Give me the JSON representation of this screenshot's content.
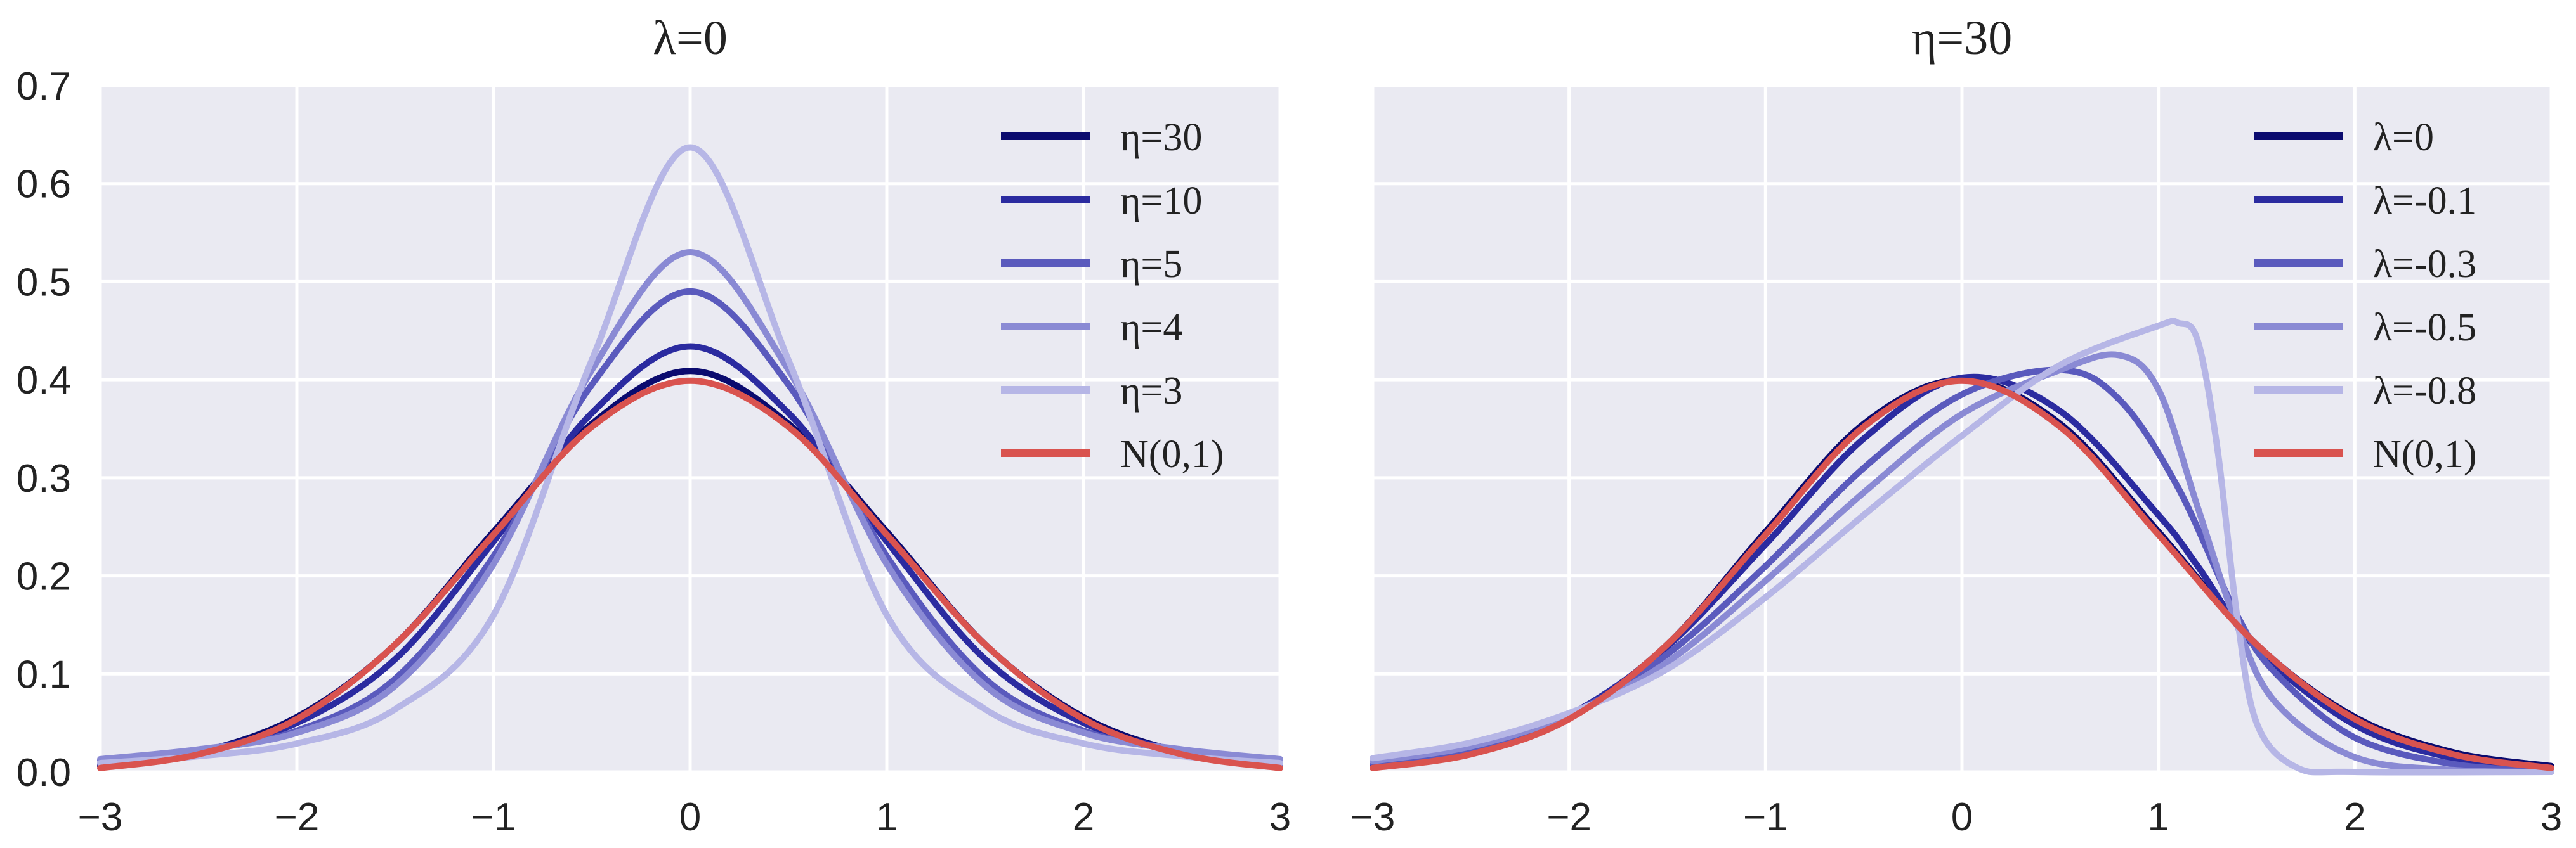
{
  "chart_data": [
    {
      "type": "line",
      "title": "λ=0",
      "xlabel": "",
      "ylabel": "",
      "xlim": [
        -3,
        3
      ],
      "ylim": [
        0,
        0.7
      ],
      "xticks": [
        "−3",
        "−2",
        "−1",
        "0",
        "1",
        "2",
        "3"
      ],
      "yticks": [
        "0.0",
        "0.1",
        "0.2",
        "0.3",
        "0.4",
        "0.5",
        "0.6",
        "0.7"
      ],
      "grid": true,
      "legend": "top-right",
      "series": [
        {
          "name": "η=30",
          "color": "#0b0b6f",
          "x": [
            -3,
            -2.5,
            -2,
            -1.5,
            -1,
            -0.5,
            0,
            0.5,
            1,
            1.5,
            2,
            2.5,
            3
          ],
          "y": [
            0.006,
            0.02,
            0.056,
            0.13,
            0.245,
            0.355,
            0.409,
            0.355,
            0.245,
            0.13,
            0.056,
            0.02,
            0.006
          ]
        },
        {
          "name": "η=10",
          "color": "#2b2ba0",
          "x": [
            -3,
            -2.5,
            -2,
            -1.5,
            -1,
            -0.5,
            0,
            0.5,
            1,
            1.5,
            2,
            2.5,
            3
          ],
          "y": [
            0.008,
            0.021,
            0.05,
            0.115,
            0.235,
            0.366,
            0.434,
            0.366,
            0.235,
            0.115,
            0.05,
            0.021,
            0.008
          ]
        },
        {
          "name": "η=5",
          "color": "#5a5abd",
          "x": [
            -3,
            -2.5,
            -2,
            -1.5,
            -1,
            -0.5,
            0,
            0.5,
            1,
            1.5,
            2,
            2.5,
            3
          ],
          "y": [
            0.012,
            0.022,
            0.042,
            0.095,
            0.22,
            0.395,
            0.49,
            0.395,
            0.22,
            0.095,
            0.042,
            0.022,
            0.012
          ]
        },
        {
          "name": "η=4",
          "color": "#8a8ad4",
          "x": [
            -3,
            -2.5,
            -2,
            -1.5,
            -1,
            -0.5,
            0,
            0.5,
            1,
            1.5,
            2,
            2.5,
            3
          ],
          "y": [
            0.013,
            0.023,
            0.04,
            0.088,
            0.212,
            0.41,
            0.53,
            0.41,
            0.212,
            0.088,
            0.04,
            0.023,
            0.013
          ]
        },
        {
          "name": "η=3",
          "color": "#b6b6e6",
          "x": [
            -3,
            -2.5,
            -2,
            -1.5,
            -1,
            -0.5,
            0,
            0.5,
            1,
            1.5,
            2,
            2.5,
            3
          ],
          "y": [
            0.009,
            0.016,
            0.029,
            0.064,
            0.16,
            0.42,
            0.637,
            0.42,
            0.16,
            0.064,
            0.029,
            0.016,
            0.009
          ]
        },
        {
          "name": "N(0,1)",
          "color": "#d9534f",
          "x": [
            -3,
            -2.5,
            -2,
            -1.5,
            -1,
            -0.5,
            0,
            0.5,
            1,
            1.5,
            2,
            2.5,
            3
          ],
          "y": [
            0.004,
            0.018,
            0.054,
            0.13,
            0.242,
            0.352,
            0.399,
            0.352,
            0.242,
            0.13,
            0.054,
            0.018,
            0.004
          ]
        }
      ]
    },
    {
      "type": "line",
      "title": "η=30",
      "xlabel": "",
      "ylabel": "",
      "xlim": [
        -3,
        3
      ],
      "ylim": [
        0,
        0.7
      ],
      "xticks": [
        "−3",
        "−2",
        "−1",
        "0",
        "1",
        "2",
        "3"
      ],
      "yticks": [],
      "grid": true,
      "legend": "top-right",
      "series": [
        {
          "name": "λ=0",
          "color": "#0b0b6f",
          "x": [
            -3,
            -2.5,
            -2,
            -1.5,
            -1,
            -0.5,
            0,
            0.5,
            1,
            1.5,
            2,
            2.5,
            3
          ],
          "y": [
            0.006,
            0.02,
            0.056,
            0.13,
            0.245,
            0.355,
            0.4,
            0.355,
            0.245,
            0.13,
            0.056,
            0.02,
            0.006
          ]
        },
        {
          "name": "λ=-0.1",
          "color": "#2b2ba0",
          "x": [
            -3,
            -2.5,
            -2,
            -1.5,
            -1,
            -0.5,
            0,
            0.5,
            1,
            1.2,
            1.5,
            2,
            2.5,
            3
          ],
          "y": [
            0.007,
            0.022,
            0.058,
            0.128,
            0.232,
            0.34,
            0.402,
            0.368,
            0.262,
            0.21,
            0.126,
            0.048,
            0.014,
            0.003
          ]
        },
        {
          "name": "λ=-0.3",
          "color": "#5a5abd",
          "x": [
            -3,
            -2.5,
            -2,
            -1.5,
            -1,
            -0.5,
            0,
            0.5,
            0.8,
            1.1,
            1.4,
            1.6,
            2,
            2.5,
            3
          ],
          "y": [
            0.009,
            0.024,
            0.058,
            0.12,
            0.21,
            0.31,
            0.385,
            0.41,
            0.38,
            0.29,
            0.16,
            0.1,
            0.035,
            0.008,
            0.001
          ]
        },
        {
          "name": "λ=-0.5",
          "color": "#8a8ad4",
          "x": [
            -3,
            -2.5,
            -2,
            -1.5,
            -1,
            -0.5,
            0,
            0.5,
            0.8,
            1.0,
            1.2,
            1.4,
            1.6,
            2,
            2.5,
            3
          ],
          "y": [
            0.011,
            0.026,
            0.058,
            0.112,
            0.195,
            0.285,
            0.365,
            0.41,
            0.425,
            0.39,
            0.27,
            0.15,
            0.07,
            0.015,
            0.002,
            0.0
          ]
        },
        {
          "name": "λ=-0.8",
          "color": "#b6b6e6",
          "x": [
            -3,
            -2.5,
            -2,
            -1.5,
            -1,
            -0.5,
            0,
            0.5,
            1.0,
            1.1,
            1.2,
            1.3,
            1.4,
            1.5,
            1.7,
            2,
            3
          ],
          "y": [
            0.014,
            0.03,
            0.06,
            0.105,
            0.178,
            0.262,
            0.343,
            0.415,
            0.455,
            0.458,
            0.44,
            0.33,
            0.16,
            0.05,
            0.005,
            0.0,
            0.0
          ]
        },
        {
          "name": "N(0,1)",
          "color": "#d9534f",
          "x": [
            -3,
            -2.5,
            -2,
            -1.5,
            -1,
            -0.5,
            0,
            0.5,
            1,
            1.5,
            2,
            2.5,
            3
          ],
          "y": [
            0.004,
            0.018,
            0.054,
            0.13,
            0.242,
            0.352,
            0.399,
            0.352,
            0.242,
            0.13,
            0.054,
            0.018,
            0.004
          ]
        }
      ]
    }
  ]
}
